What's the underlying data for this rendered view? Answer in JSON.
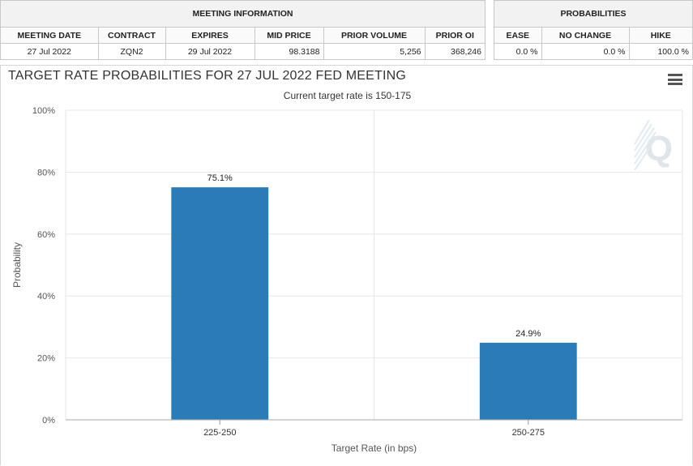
{
  "meeting_info": {
    "header": "MEETING INFORMATION",
    "columns": [
      "MEETING DATE",
      "CONTRACT",
      "EXPIRES",
      "MID PRICE",
      "PRIOR VOLUME",
      "PRIOR OI"
    ],
    "values": [
      "27 Jul 2022",
      "ZQN2",
      "29 Jul 2022",
      "98.3188",
      "5,256",
      "368,246"
    ]
  },
  "probabilities": {
    "header": "PROBABILITIES",
    "columns": [
      "EASE",
      "NO CHANGE",
      "HIKE"
    ],
    "values": [
      "0.0 %",
      "0.0 %",
      "100.0 %"
    ]
  },
  "chart": {
    "title": "TARGET RATE PROBABILITIES FOR 27 JUL 2022 FED MEETING",
    "subtitle": "Current target rate is 150-175",
    "watermark": "Q",
    "menu_icon": "hamburger-menu-icon"
  },
  "chart_data": {
    "type": "bar",
    "categories": [
      "225-250",
      "250-275"
    ],
    "values": [
      75.1,
      24.9
    ],
    "value_labels": [
      "75.1%",
      "24.9%"
    ],
    "xlabel": "Target Rate (in bps)",
    "ylabel": "Probability",
    "ylim": [
      0,
      100
    ],
    "yticks": [
      "0%",
      "20%",
      "40%",
      "60%",
      "80%",
      "100%"
    ],
    "grid": true,
    "bar_color": "#2b7bb9"
  }
}
